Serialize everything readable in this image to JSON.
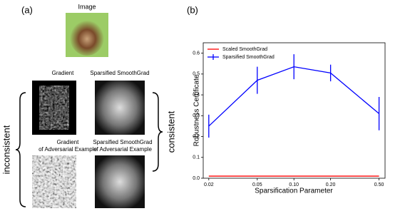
{
  "panel_a": {
    "label": "(a)",
    "image_title": "Image",
    "top_captions": [
      "Gradient",
      "Sparsified SmoothGrad"
    ],
    "bottom_captions": [
      [
        "Gradient",
        "of Adversarial Example"
      ],
      [
        "Sparsified SmoothGrad",
        "of Adversarial Example"
      ]
    ],
    "left_label": "inconsistent",
    "right_label": "consistent"
  },
  "panel_b": {
    "label": "(b)"
  },
  "chart_data": {
    "type": "line",
    "x_label": "Sparsification Parameter",
    "y_label": "Robustness Certificate",
    "x_scale": "log",
    "x": [
      0.02,
      0.05,
      0.1,
      0.2,
      0.5
    ],
    "series": [
      {
        "name": "Scaled SmoothGrad",
        "color": "#ff0000",
        "values": [
          0.01,
          0.01,
          0.01,
          0.01,
          0.01
        ]
      },
      {
        "name": "Sparsified SmoothGrad",
        "color": "#0000ff",
        "values": [
          0.25,
          0.47,
          0.535,
          0.505,
          0.31
        ],
        "errors": [
          0.055,
          0.065,
          0.06,
          0.04,
          0.08
        ]
      }
    ],
    "xlim": [
      0.018,
      0.56
    ],
    "xticks": [
      0.02,
      0.05,
      {
        "value": 0.1,
        "label": "0.10"
      },
      {
        "value": 0.2,
        "label": "0.20"
      },
      {
        "value": 0.5,
        "label": "0.50"
      }
    ],
    "ylim": [
      0,
      0.65
    ],
    "yticks": [
      {
        "value": 0,
        "label": "0.0"
      },
      0.1,
      0.2,
      0.3,
      0.4,
      0.5,
      0.6
    ],
    "legend": "upper left",
    "grid": false
  }
}
